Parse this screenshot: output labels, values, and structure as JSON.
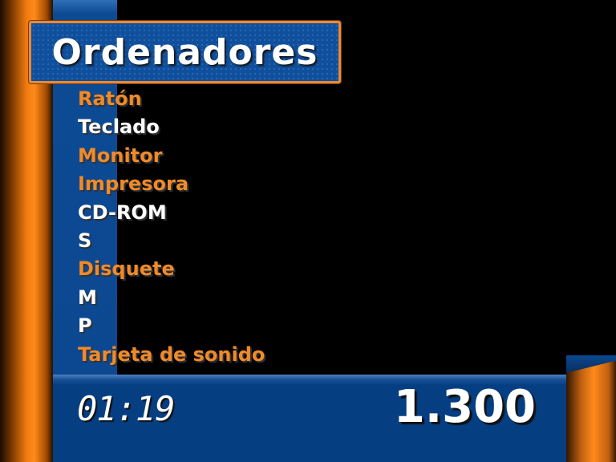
{
  "category_title": "Ordenadores",
  "answers": [
    {
      "text": "Ratón",
      "state": "revealed",
      "color": "#f08a2a"
    },
    {
      "text": "Teclado",
      "state": "pending",
      "color": "#ffffff"
    },
    {
      "text": "Monitor",
      "state": "revealed",
      "color": "#f08a2a"
    },
    {
      "text": "Impresora",
      "state": "revealed",
      "color": "#f08a2a"
    },
    {
      "text": "CD-ROM",
      "state": "pending",
      "color": "#ffffff"
    },
    {
      "text": "S",
      "state": "pending",
      "color": "#ffffff"
    },
    {
      "text": "Disquete",
      "state": "revealed",
      "color": "#f08a2a"
    },
    {
      "text": "M",
      "state": "pending",
      "color": "#ffffff"
    },
    {
      "text": "P",
      "state": "pending",
      "color": "#ffffff"
    },
    {
      "text": "Tarjeta de sonido",
      "state": "revealed",
      "color": "#f08a2a"
    }
  ],
  "timer": "01:19",
  "score": "1.300",
  "colors": {
    "accent_orange": "#f08a2a",
    "panel_blue": "#053f82",
    "background": "#000000"
  }
}
